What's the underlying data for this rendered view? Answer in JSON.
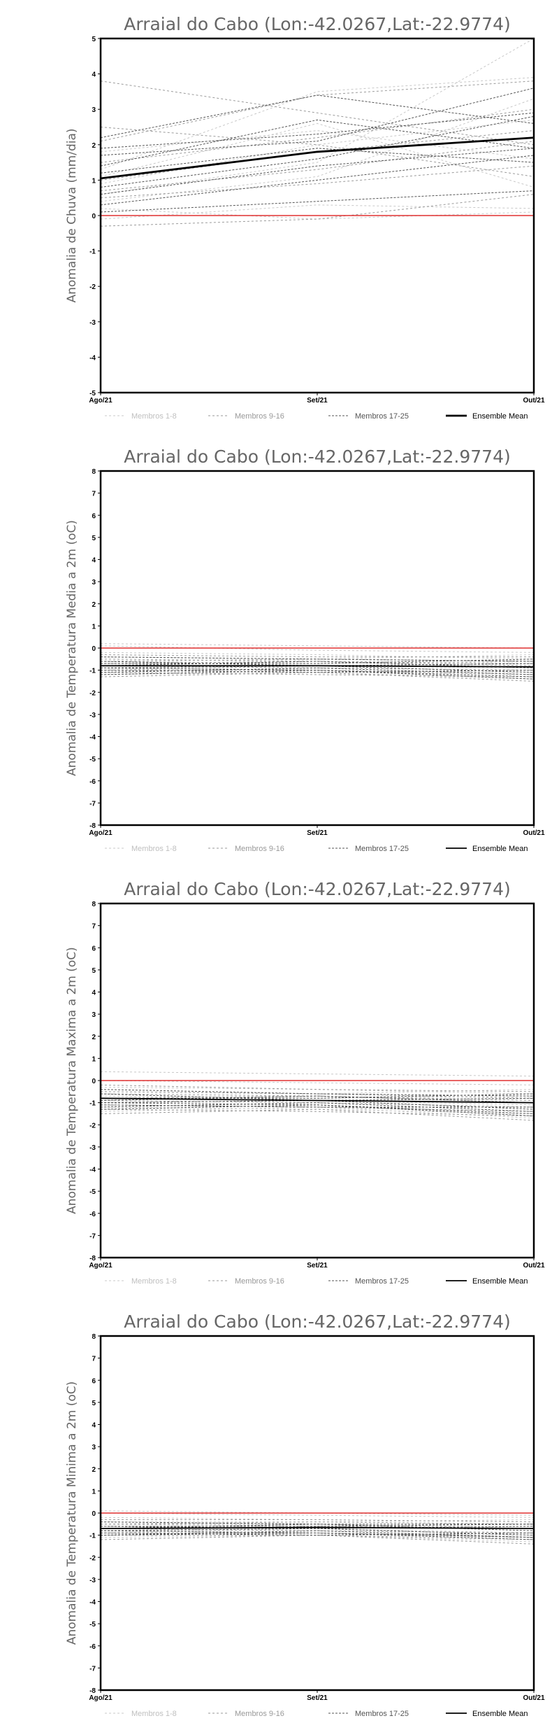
{
  "x_categories": [
    "Ago/21",
    "Set/21",
    "Out/21"
  ],
  "legend": {
    "members_1_8": "Membros 1-8",
    "members_9_16": "Membros 9-16",
    "members_17_25": "Membros 17-25",
    "ensemble_mean": "Ensemble Mean"
  },
  "colors": {
    "members_1_8": "#c8c8c8",
    "members_9_16": "#9a9a9a",
    "members_17_25": "#555555",
    "ensemble_mean": "#000000",
    "zero_line": "#e03030"
  },
  "chart_data": [
    {
      "type": "line",
      "title": "Arraial do Cabo (Lon:-42.0267,Lat:-22.9774)",
      "ylabel": "Anomalia de Chuva (mm/dia)",
      "ylim": [
        -5,
        5
      ],
      "categories": [
        "Ago/21",
        "Set/21",
        "Out/21"
      ],
      "mean": [
        1.05,
        1.8,
        2.2
      ],
      "series": [
        {
          "group": "members_1_8",
          "values": [
            0.6,
            1.5,
            5.0
          ]
        },
        {
          "group": "members_1_8",
          "values": [
            1.3,
            3.5,
            3.9
          ]
        },
        {
          "group": "members_1_8",
          "values": [
            0.9,
            2.0,
            2.7
          ]
        },
        {
          "group": "members_1_8",
          "values": [
            -0.1,
            0.3,
            0.2
          ]
        },
        {
          "group": "members_1_8",
          "values": [
            1.8,
            2.4,
            1.6
          ]
        },
        {
          "group": "members_1_8",
          "values": [
            0.4,
            1.1,
            3.3
          ]
        },
        {
          "group": "members_1_8",
          "values": [
            1.1,
            2.6,
            0.8
          ]
        },
        {
          "group": "members_1_8",
          "values": [
            0.2,
            -0.1,
            0.1
          ]
        },
        {
          "group": "members_9_16",
          "values": [
            3.8,
            2.9,
            2.0
          ]
        },
        {
          "group": "members_9_16",
          "values": [
            2.1,
            3.4,
            3.8
          ]
        },
        {
          "group": "members_9_16",
          "values": [
            0.7,
            1.3,
            2.1
          ]
        },
        {
          "group": "members_9_16",
          "values": [
            -0.3,
            -0.1,
            0.6
          ]
        },
        {
          "group": "members_9_16",
          "values": [
            1.5,
            2.2,
            3.0
          ]
        },
        {
          "group": "members_9_16",
          "values": [
            0.5,
            0.9,
            1.4
          ]
        },
        {
          "group": "members_9_16",
          "values": [
            2.5,
            2.0,
            1.1
          ]
        },
        {
          "group": "members_9_16",
          "values": [
            1.0,
            1.8,
            2.4
          ]
        },
        {
          "group": "members_17_25",
          "values": [
            2.2,
            3.4,
            2.6
          ]
        },
        {
          "group": "members_17_25",
          "values": [
            1.7,
            2.1,
            3.6
          ]
        },
        {
          "group": "members_17_25",
          "values": [
            1.2,
            1.9,
            1.5
          ]
        },
        {
          "group": "members_17_25",
          "values": [
            0.6,
            1.4,
            1.9
          ]
        },
        {
          "group": "members_17_25",
          "values": [
            0.1,
            0.4,
            0.7
          ]
        },
        {
          "group": "members_17_25",
          "values": [
            1.9,
            2.3,
            2.9
          ]
        },
        {
          "group": "members_17_25",
          "values": [
            0.8,
            1.6,
            2.8
          ]
        },
        {
          "group": "members_17_25",
          "values": [
            1.4,
            2.7,
            1.9
          ]
        },
        {
          "group": "members_17_25",
          "values": [
            0.3,
            1.0,
            1.7
          ]
        }
      ]
    },
    {
      "type": "line",
      "title": "Arraial do Cabo (Lon:-42.0267,Lat:-22.9774)",
      "ylabel": "Anomalia de Temperatura Media a 2m (oC)",
      "ylim": [
        -8,
        8
      ],
      "categories": [
        "Ago/21",
        "Set/21",
        "Out/21"
      ],
      "mean": [
        -0.8,
        -0.8,
        -0.85
      ],
      "series": [
        {
          "group": "members_1_8",
          "values": [
            0.2,
            0.1,
            0.0
          ]
        },
        {
          "group": "members_1_8",
          "values": [
            -0.4,
            -0.5,
            -0.3
          ]
        },
        {
          "group": "members_1_8",
          "values": [
            -0.9,
            -1.0,
            -1.1
          ]
        },
        {
          "group": "members_1_8",
          "values": [
            -1.2,
            -1.1,
            -1.4
          ]
        },
        {
          "group": "members_1_8",
          "values": [
            0.1,
            -0.1,
            -0.2
          ]
        },
        {
          "group": "members_1_8",
          "values": [
            -0.6,
            -0.7,
            -0.6
          ]
        },
        {
          "group": "members_1_8",
          "values": [
            -1.0,
            -0.8,
            -0.9
          ]
        },
        {
          "group": "members_1_8",
          "values": [
            -0.2,
            -0.3,
            -0.5
          ]
        },
        {
          "group": "members_9_16",
          "values": [
            -0.5,
            -0.6,
            -0.7
          ]
        },
        {
          "group": "members_9_16",
          "values": [
            -1.1,
            -1.2,
            -1.3
          ]
        },
        {
          "group": "members_9_16",
          "values": [
            -0.7,
            -0.6,
            -0.8
          ]
        },
        {
          "group": "members_9_16",
          "values": [
            -1.3,
            -1.1,
            -1.5
          ]
        },
        {
          "group": "members_9_16",
          "values": [
            -0.3,
            -0.4,
            -0.4
          ]
        },
        {
          "group": "members_9_16",
          "values": [
            -0.8,
            -0.9,
            -1.0
          ]
        },
        {
          "group": "members_9_16",
          "values": [
            -1.0,
            -1.0,
            -1.2
          ]
        },
        {
          "group": "members_9_16",
          "values": [
            -0.6,
            -0.5,
            -0.6
          ]
        },
        {
          "group": "members_17_25",
          "values": [
            -0.9,
            -0.8,
            -1.1
          ]
        },
        {
          "group": "members_17_25",
          "values": [
            -0.7,
            -0.7,
            -0.5
          ]
        },
        {
          "group": "members_17_25",
          "values": [
            -1.2,
            -1.0,
            -1.4
          ]
        },
        {
          "group": "members_17_25",
          "values": [
            -0.4,
            -0.5,
            -0.6
          ]
        },
        {
          "group": "members_17_25",
          "values": [
            -1.0,
            -1.1,
            -1.0
          ]
        },
        {
          "group": "members_17_25",
          "values": [
            -0.8,
            -0.6,
            -0.9
          ]
        },
        {
          "group": "members_17_25",
          "values": [
            -1.1,
            -0.9,
            -1.2
          ]
        },
        {
          "group": "members_17_25",
          "values": [
            -0.6,
            -0.8,
            -0.7
          ]
        },
        {
          "group": "members_17_25",
          "values": [
            -0.9,
            -1.0,
            -1.3
          ]
        }
      ]
    },
    {
      "type": "line",
      "title": "Arraial do Cabo (Lon:-42.0267,Lat:-22.9774)",
      "ylabel": "Anomalia de Temperatura Maxima a 2m (oC)",
      "ylim": [
        -8,
        8
      ],
      "categories": [
        "Ago/21",
        "Set/21",
        "Out/21"
      ],
      "mean": [
        -0.8,
        -0.9,
        -1.0
      ],
      "series": [
        {
          "group": "members_1_8",
          "values": [
            0.4,
            0.3,
            0.2
          ]
        },
        {
          "group": "members_1_8",
          "values": [
            -0.5,
            -0.6,
            -0.4
          ]
        },
        {
          "group": "members_1_8",
          "values": [
            -1.2,
            -1.3,
            -1.5
          ]
        },
        {
          "group": "members_1_8",
          "values": [
            -1.4,
            -1.2,
            -1.7
          ]
        },
        {
          "group": "members_1_8",
          "values": [
            0.0,
            -0.1,
            -0.2
          ]
        },
        {
          "group": "members_1_8",
          "values": [
            -0.7,
            -0.8,
            -0.7
          ]
        },
        {
          "group": "members_1_8",
          "values": [
            -1.0,
            -0.9,
            -1.1
          ]
        },
        {
          "group": "members_1_8",
          "values": [
            -0.3,
            -0.4,
            -0.6
          ]
        },
        {
          "group": "members_9_16",
          "values": [
            -0.6,
            -0.7,
            -0.9
          ]
        },
        {
          "group": "members_9_16",
          "values": [
            -1.3,
            -1.4,
            -1.6
          ]
        },
        {
          "group": "members_9_16",
          "values": [
            -0.8,
            -0.7,
            -1.0
          ]
        },
        {
          "group": "members_9_16",
          "values": [
            -1.5,
            -1.3,
            -1.8
          ]
        },
        {
          "group": "members_9_16",
          "values": [
            -0.2,
            -0.4,
            -0.5
          ]
        },
        {
          "group": "members_9_16",
          "values": [
            -0.9,
            -1.0,
            -1.2
          ]
        },
        {
          "group": "members_9_16",
          "values": [
            -1.1,
            -1.2,
            -1.4
          ]
        },
        {
          "group": "members_9_16",
          "values": [
            -0.5,
            -0.6,
            -0.8
          ]
        },
        {
          "group": "members_17_25",
          "values": [
            -1.0,
            -0.9,
            -1.3
          ]
        },
        {
          "group": "members_17_25",
          "values": [
            -0.8,
            -0.8,
            -0.6
          ]
        },
        {
          "group": "members_17_25",
          "values": [
            -1.3,
            -1.1,
            -1.6
          ]
        },
        {
          "group": "members_17_25",
          "values": [
            -0.4,
            -0.6,
            -0.7
          ]
        },
        {
          "group": "members_17_25",
          "values": [
            -1.1,
            -1.2,
            -1.2
          ]
        },
        {
          "group": "members_17_25",
          "values": [
            -0.9,
            -0.7,
            -1.0
          ]
        },
        {
          "group": "members_17_25",
          "values": [
            -1.2,
            -1.0,
            -1.4
          ]
        },
        {
          "group": "members_17_25",
          "values": [
            -0.6,
            -0.9,
            -0.8
          ]
        },
        {
          "group": "members_17_25",
          "values": [
            -1.0,
            -1.1,
            -1.5
          ]
        }
      ]
    },
    {
      "type": "line",
      "title": "Arraial do Cabo (Lon:-42.0267,Lat:-22.9774)",
      "ylabel": "Anomalia de Temperatura Minima a 2m (oC)",
      "ylim": [
        -8,
        8
      ],
      "categories": [
        "Ago/21",
        "Set/21",
        "Out/21"
      ],
      "mean": [
        -0.7,
        -0.65,
        -0.7
      ],
      "series": [
        {
          "group": "members_1_8",
          "values": [
            0.1,
            0.0,
            -0.1
          ]
        },
        {
          "group": "members_1_8",
          "values": [
            -0.4,
            -0.4,
            -0.3
          ]
        },
        {
          "group": "members_1_8",
          "values": [
            -0.8,
            -0.9,
            -1.0
          ]
        },
        {
          "group": "members_1_8",
          "values": [
            -1.1,
            -1.0,
            -1.3
          ]
        },
        {
          "group": "members_1_8",
          "values": [
            0.0,
            -0.1,
            -0.2
          ]
        },
        {
          "group": "members_1_8",
          "values": [
            -0.5,
            -0.6,
            -0.6
          ]
        },
        {
          "group": "members_1_8",
          "values": [
            -0.9,
            -0.7,
            -0.9
          ]
        },
        {
          "group": "members_1_8",
          "values": [
            -0.2,
            -0.3,
            -0.4
          ]
        },
        {
          "group": "members_9_16",
          "values": [
            -0.5,
            -0.5,
            -0.7
          ]
        },
        {
          "group": "members_9_16",
          "values": [
            -1.0,
            -1.0,
            -1.2
          ]
        },
        {
          "group": "members_9_16",
          "values": [
            -0.6,
            -0.6,
            -0.7
          ]
        },
        {
          "group": "members_9_16",
          "values": [
            -1.2,
            -1.0,
            -1.4
          ]
        },
        {
          "group": "members_9_16",
          "values": [
            -0.3,
            -0.3,
            -0.4
          ]
        },
        {
          "group": "members_9_16",
          "values": [
            -0.7,
            -0.8,
            -0.9
          ]
        },
        {
          "group": "members_9_16",
          "values": [
            -0.9,
            -0.9,
            -1.1
          ]
        },
        {
          "group": "members_9_16",
          "values": [
            -0.5,
            -0.4,
            -0.5
          ]
        },
        {
          "group": "members_17_25",
          "values": [
            -0.8,
            -0.7,
            -1.0
          ]
        },
        {
          "group": "members_17_25",
          "values": [
            -0.6,
            -0.6,
            -0.5
          ]
        },
        {
          "group": "members_17_25",
          "values": [
            -1.0,
            -0.9,
            -1.2
          ]
        },
        {
          "group": "members_17_25",
          "values": [
            -0.4,
            -0.5,
            -0.5
          ]
        },
        {
          "group": "members_17_25",
          "values": [
            -0.9,
            -1.0,
            -0.9
          ]
        },
        {
          "group": "members_17_25",
          "values": [
            -0.7,
            -0.5,
            -0.8
          ]
        },
        {
          "group": "members_17_25",
          "values": [
            -1.0,
            -0.8,
            -1.1
          ]
        },
        {
          "group": "members_17_25",
          "values": [
            -0.6,
            -0.7,
            -0.6
          ]
        },
        {
          "group": "members_17_25",
          "values": [
            -0.8,
            -0.9,
            -1.1
          ]
        }
      ]
    }
  ]
}
